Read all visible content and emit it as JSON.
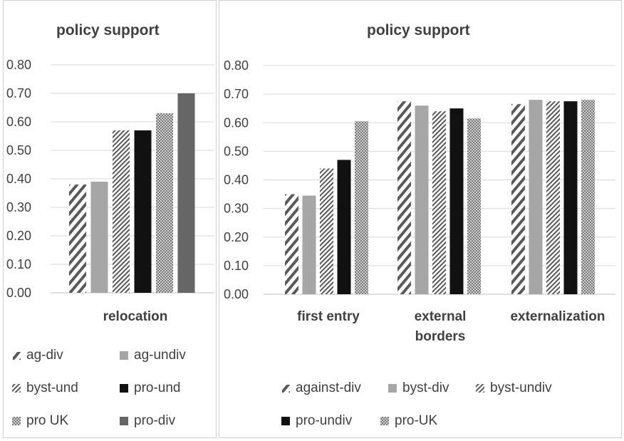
{
  "colors": {
    "ink": "#404040",
    "grid": "#d9d9d9",
    "light": "#a6a6a6",
    "dark": "#111111",
    "mid": "#666666",
    "hatch": "#595959"
  },
  "chart_data": [
    {
      "type": "bar",
      "title": "policy support",
      "categories": [
        "relocation"
      ],
      "ylim": [
        0,
        0.8
      ],
      "yticks": [
        "0.80",
        "0.70",
        "0.60",
        "0.50",
        "0.40",
        "0.30",
        "0.20",
        "0.10",
        "0.00"
      ],
      "grid": true,
      "legend_position": "bottom",
      "series": [
        {
          "name": "ag-div",
          "pattern": "diag-wide",
          "values": [
            0.38
          ]
        },
        {
          "name": "ag-undiv",
          "pattern": "solid-light",
          "values": [
            0.39
          ]
        },
        {
          "name": "byst-und",
          "pattern": "diag-dense",
          "values": [
            0.57
          ]
        },
        {
          "name": "pro-und",
          "pattern": "solid-dark",
          "values": [
            0.57
          ]
        },
        {
          "name": "pro UK",
          "pattern": "checker",
          "values": [
            0.63
          ]
        },
        {
          "name": "pro-div",
          "pattern": "solid-mid",
          "values": [
            0.7
          ]
        }
      ]
    },
    {
      "type": "bar",
      "title": "policy support",
      "categories": [
        "first entry",
        "external borders",
        "externalization"
      ],
      "ylim": [
        0,
        0.8
      ],
      "yticks": [
        "0.80",
        "0.70",
        "0.60",
        "0.50",
        "0.40",
        "0.30",
        "0.20",
        "0.10",
        "0.00"
      ],
      "grid": true,
      "legend_position": "bottom",
      "series": [
        {
          "name": "against-div",
          "pattern": "diag-wide",
          "values": [
            0.35,
            0.675,
            0.665
          ]
        },
        {
          "name": "byst-div",
          "pattern": "solid-light",
          "values": [
            0.345,
            0.66,
            0.68
          ]
        },
        {
          "name": "byst-undiv",
          "pattern": "diag-dense",
          "values": [
            0.44,
            0.64,
            0.675
          ]
        },
        {
          "name": "pro-undiv",
          "pattern": "solid-dark",
          "values": [
            0.47,
            0.65,
            0.675
          ]
        },
        {
          "name": "pro-UK",
          "pattern": "checker",
          "values": [
            0.605,
            0.615,
            0.68
          ]
        }
      ]
    }
  ]
}
